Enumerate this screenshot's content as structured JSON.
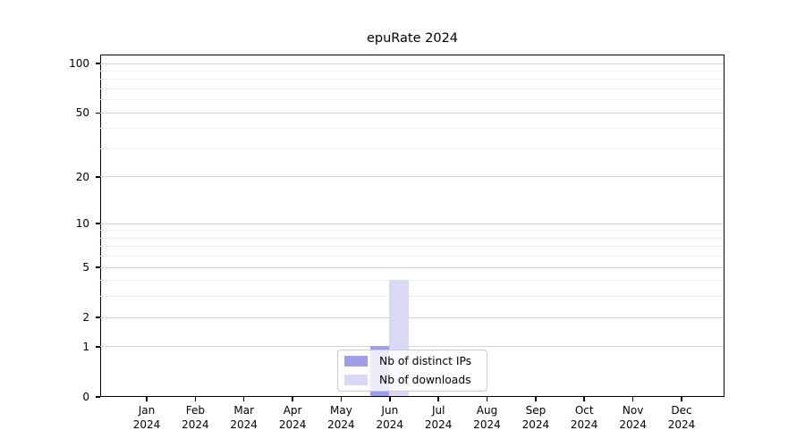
{
  "title": "epuRate 2024",
  "chart_data": {
    "type": "bar",
    "title": "epuRate 2024",
    "categories": [
      "Jan",
      "Feb",
      "Mar",
      "Apr",
      "May",
      "Jun",
      "Jul",
      "Aug",
      "Sep",
      "Oct",
      "Nov",
      "Dec"
    ],
    "year_label": "2024",
    "series": [
      {
        "name": "Nb of distinct IPs",
        "color": "#9f9fe9",
        "values": [
          0,
          0,
          0,
          0,
          0,
          1,
          0,
          0,
          0,
          0,
          0,
          0
        ]
      },
      {
        "name": "Nb of downloads",
        "color": "#d9d9f6",
        "values": [
          0,
          0,
          0,
          0,
          0,
          4,
          0,
          0,
          0,
          0,
          0,
          0
        ]
      }
    ],
    "xlabel": "",
    "ylabel": "",
    "yscale": "log1p",
    "ylim": [
      0,
      113.4
    ],
    "y_major_ticks": [
      0,
      1,
      2,
      5,
      10,
      20,
      50,
      100
    ],
    "y_minor_ticks": [
      3,
      4,
      6,
      7,
      8,
      9,
      30,
      40,
      60,
      70,
      80,
      90
    ],
    "grid": true,
    "legend_position": "lower center",
    "colors": {
      "axis": "#000000",
      "grid_major": "#d6d6d6",
      "grid_minor": "#efefef",
      "legend_border": "#cccccc"
    }
  }
}
